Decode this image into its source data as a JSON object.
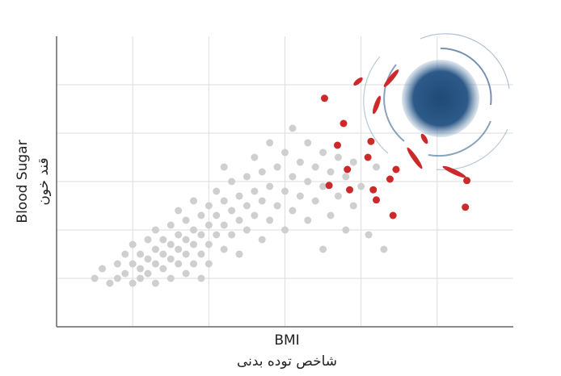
{
  "chart_data": {
    "type": "scatter",
    "xlabel": "BMI",
    "xlabel_fa": "شاخص توده بدنی",
    "ylabel": "Blood Sugar",
    "ylabel_fa": "قند خون",
    "xlim": [
      0,
      6
    ],
    "ylim": [
      0,
      6
    ],
    "xticks": [
      1,
      2,
      3,
      4,
      5
    ],
    "yticks": [
      1,
      2,
      3,
      4,
      5
    ],
    "grid": true,
    "series": [
      {
        "color": "#cfcfcf",
        "x": [
          0.5,
          0.6,
          0.7,
          0.8,
          0.8,
          0.9,
          0.9,
          1.0,
          1.0,
          1.0,
          1.1,
          1.1,
          1.1,
          1.2,
          1.2,
          1.2,
          1.3,
          1.3,
          1.3,
          1.3,
          1.4,
          1.4,
          1.4,
          1.5,
          1.5,
          1.5,
          1.5,
          1.6,
          1.6,
          1.6,
          1.6,
          1.7,
          1.7,
          1.7,
          1.7,
          1.8,
          1.8,
          1.8,
          1.8,
          1.9,
          1.9,
          1.9,
          1.9,
          2.0,
          2.0,
          2.0,
          2.0,
          2.1,
          2.1,
          2.1,
          2.2,
          2.2,
          2.2,
          2.2,
          2.3,
          2.3,
          2.3,
          2.4,
          2.4,
          2.4,
          2.5,
          2.5,
          2.5,
          2.6,
          2.6,
          2.6,
          2.7,
          2.7,
          2.7,
          2.8,
          2.8,
          2.8,
          2.9,
          2.9,
          3.0,
          3.0,
          3.0,
          3.1,
          3.1,
          3.1,
          3.2,
          3.2,
          3.3,
          3.3,
          3.3,
          3.4,
          3.4,
          3.5,
          3.5,
          3.5,
          3.6,
          3.6,
          3.7,
          3.7,
          3.8,
          3.8,
          3.9,
          3.9,
          4.0,
          4.1,
          4.2,
          4.3
        ],
        "values": [
          1.0,
          1.2,
          0.9,
          1.3,
          1.0,
          1.5,
          1.1,
          1.3,
          0.9,
          1.7,
          1.2,
          1.5,
          1.0,
          1.4,
          1.8,
          1.1,
          1.3,
          1.6,
          2.0,
          0.9,
          1.2,
          1.5,
          1.8,
          1.0,
          1.4,
          1.7,
          2.1,
          1.3,
          1.6,
          1.9,
          2.4,
          1.1,
          1.5,
          1.8,
          2.2,
          1.3,
          1.7,
          2.0,
          2.6,
          1.5,
          1.9,
          2.3,
          1.0,
          1.7,
          2.1,
          2.5,
          1.3,
          1.9,
          2.3,
          2.8,
          1.6,
          2.1,
          2.6,
          3.3,
          1.9,
          2.4,
          3.0,
          2.2,
          2.7,
          1.5,
          2.0,
          2.5,
          3.1,
          2.3,
          2.8,
          3.5,
          1.8,
          2.6,
          3.2,
          2.2,
          2.9,
          3.8,
          2.5,
          3.3,
          2.0,
          2.8,
          3.6,
          2.4,
          3.1,
          4.1,
          2.7,
          3.4,
          2.2,
          3.0,
          3.8,
          2.6,
          3.3,
          1.6,
          2.9,
          3.6,
          2.3,
          3.2,
          2.7,
          3.5,
          3.1,
          2.0,
          3.4,
          2.5,
          2.9,
          1.9,
          3.3,
          1.6
        ]
      },
      {
        "color": "#cc2a2a",
        "x": [
          3.52,
          3.77,
          3.69,
          3.82,
          3.85,
          3.58,
          4.13,
          4.09,
          4.16,
          4.2,
          4.38,
          4.46,
          4.42,
          5.37,
          5.39
        ],
        "values": [
          4.72,
          4.2,
          3.75,
          3.25,
          2.83,
          2.92,
          3.83,
          3.5,
          2.83,
          2.62,
          3.05,
          3.25,
          2.3,
          2.47,
          3.02
        ]
      }
    ]
  }
}
